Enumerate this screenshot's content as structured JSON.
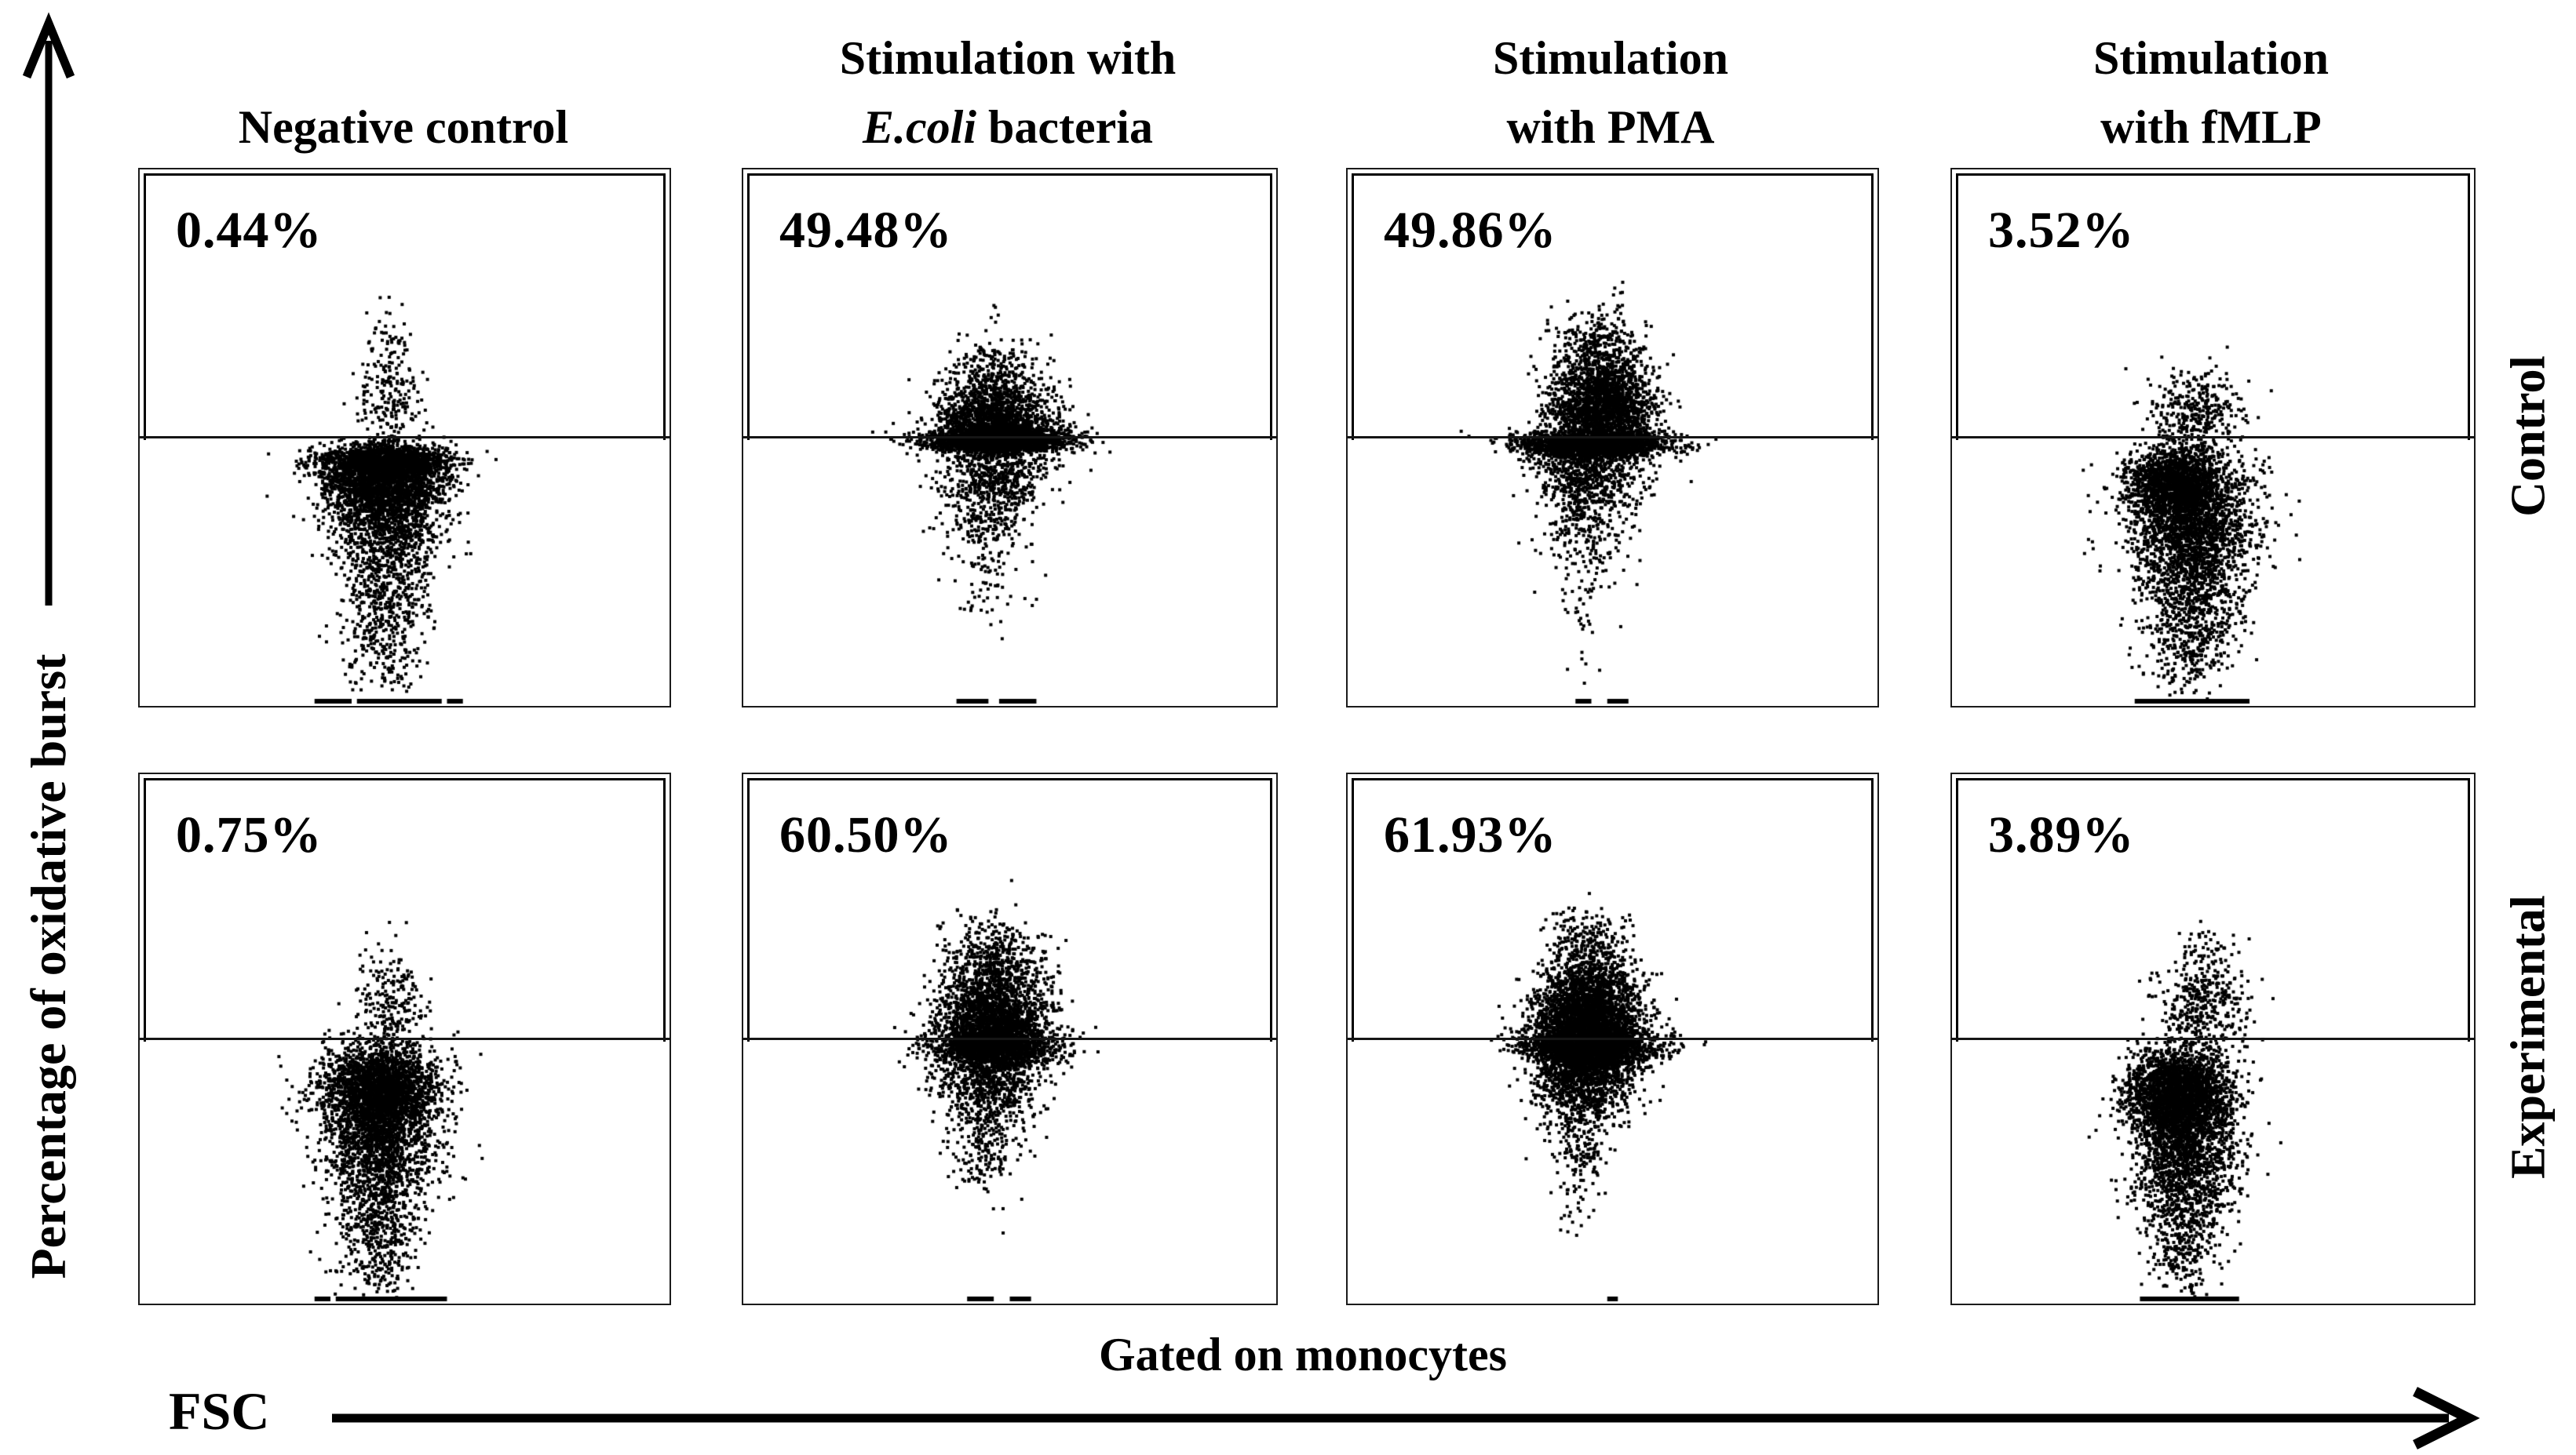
{
  "figure": {
    "y_axis_label": "Percentage of oxidative burst",
    "x_axis_label": "FSC",
    "x_axis_caption": "Gated on monocytes",
    "row_labels": [
      "Control",
      "Experimental"
    ],
    "column_headers": [
      {
        "line1": "",
        "line2_italic": "",
        "line2_rest": "Negative control"
      },
      {
        "line1": "Stimulation with",
        "line2_italic": "E.coli",
        "line2_rest": " bacteria"
      },
      {
        "line1": "Stimulation",
        "line2_italic": "",
        "line2_rest": "with PMA"
      },
      {
        "line1": "Stimulation",
        "line2_italic": "",
        "line2_rest": "with fMLP"
      }
    ]
  },
  "chart_data": [
    {
      "type": "scatter",
      "row": "Control",
      "condition": "Negative control",
      "percent": "0.44%",
      "gate": "upper-half rectangle, events above gate line counted",
      "clusters": [
        {
          "cx": 0.465,
          "cy": 0.545,
          "sx": 0.06,
          "sy": 0.016,
          "n": 1600
        },
        {
          "cx": 0.46,
          "cy": 0.585,
          "sx": 0.055,
          "sy": 0.03,
          "n": 1500
        },
        {
          "cx": 0.465,
          "cy": 0.65,
          "sx": 0.05,
          "sy": 0.05,
          "n": 900
        },
        {
          "cx": 0.465,
          "cy": 0.76,
          "sx": 0.042,
          "sy": 0.07,
          "n": 500
        },
        {
          "cx": 0.46,
          "cy": 0.89,
          "sx": 0.032,
          "sy": 0.05,
          "n": 180
        },
        {
          "cx": 0.47,
          "cy": 0.43,
          "sx": 0.032,
          "sy": 0.045,
          "n": 170
        },
        {
          "cx": 0.475,
          "cy": 0.33,
          "sx": 0.025,
          "sy": 0.038,
          "n": 60
        }
      ],
      "baseline_dashes": [
        [
          0.33,
          0.4
        ],
        [
          0.41,
          0.57
        ],
        [
          0.58,
          0.61
        ]
      ]
    },
    {
      "type": "scatter",
      "row": "Control",
      "condition": "Stimulation with E.coli bacteria",
      "percent": "49.48%",
      "gate": "upper-half rectangle, events above gate line counted",
      "clusters": [
        {
          "cx": 0.48,
          "cy": 0.505,
          "sx": 0.062,
          "sy": 0.011,
          "n": 2200
        },
        {
          "cx": 0.478,
          "cy": 0.478,
          "sx": 0.055,
          "sy": 0.022,
          "n": 900
        },
        {
          "cx": 0.475,
          "cy": 0.44,
          "sx": 0.05,
          "sy": 0.035,
          "n": 650
        },
        {
          "cx": 0.47,
          "cy": 0.38,
          "sx": 0.045,
          "sy": 0.032,
          "n": 220
        },
        {
          "cx": 0.47,
          "cy": 0.56,
          "sx": 0.052,
          "sy": 0.035,
          "n": 520
        },
        {
          "cx": 0.462,
          "cy": 0.64,
          "sx": 0.045,
          "sy": 0.045,
          "n": 260
        },
        {
          "cx": 0.455,
          "cy": 0.76,
          "sx": 0.03,
          "sy": 0.06,
          "n": 70
        },
        {
          "cx": 0.47,
          "cy": 0.25,
          "sx": 0.01,
          "sy": 0.015,
          "n": 3
        }
      ],
      "baseline_dashes": [
        [
          0.4,
          0.46
        ],
        [
          0.48,
          0.55
        ]
      ]
    },
    {
      "type": "scatter",
      "row": "Control",
      "condition": "Stimulation with PMA",
      "percent": "49.86%",
      "gate": "upper-half rectangle, events above gate line counted",
      "clusters": [
        {
          "cx": 0.462,
          "cy": 0.512,
          "sx": 0.066,
          "sy": 0.012,
          "n": 2400
        },
        {
          "cx": 0.48,
          "cy": 0.455,
          "sx": 0.05,
          "sy": 0.03,
          "n": 1100
        },
        {
          "cx": 0.482,
          "cy": 0.405,
          "sx": 0.048,
          "sy": 0.035,
          "n": 800
        },
        {
          "cx": 0.475,
          "cy": 0.33,
          "sx": 0.042,
          "sy": 0.038,
          "n": 330
        },
        {
          "cx": 0.455,
          "cy": 0.565,
          "sx": 0.05,
          "sy": 0.032,
          "n": 600
        },
        {
          "cx": 0.448,
          "cy": 0.65,
          "sx": 0.042,
          "sy": 0.048,
          "n": 280
        },
        {
          "cx": 0.45,
          "cy": 0.8,
          "sx": 0.022,
          "sy": 0.07,
          "n": 60
        }
      ],
      "baseline_dashes": [
        [
          0.43,
          0.46
        ],
        [
          0.49,
          0.53
        ]
      ]
    },
    {
      "type": "scatter",
      "row": "Control",
      "condition": "Stimulation with fMLP",
      "percent": "3.52%",
      "gate": "upper-half rectangle, events above gate line counted",
      "clusters": [
        {
          "cx": 0.43,
          "cy": 0.585,
          "sx": 0.048,
          "sy": 0.035,
          "n": 1500
        },
        {
          "cx": 0.46,
          "cy": 0.65,
          "sx": 0.058,
          "sy": 0.055,
          "n": 1700
        },
        {
          "cx": 0.465,
          "cy": 0.76,
          "sx": 0.05,
          "sy": 0.065,
          "n": 800
        },
        {
          "cx": 0.455,
          "cy": 0.89,
          "sx": 0.04,
          "sy": 0.045,
          "n": 280
        },
        {
          "cx": 0.47,
          "cy": 0.45,
          "sx": 0.047,
          "sy": 0.038,
          "n": 330
        }
      ],
      "baseline_dashes": [
        [
          0.35,
          0.57
        ]
      ]
    },
    {
      "type": "scatter",
      "row": "Experimental",
      "condition": "Negative control",
      "percent": "0.75%",
      "gate": "upper-half rectangle, events above gate line counted",
      "clusters": [
        {
          "cx": 0.455,
          "cy": 0.595,
          "sx": 0.055,
          "sy": 0.042,
          "n": 2300
        },
        {
          "cx": 0.455,
          "cy": 0.69,
          "sx": 0.052,
          "sy": 0.06,
          "n": 1300
        },
        {
          "cx": 0.45,
          "cy": 0.82,
          "sx": 0.042,
          "sy": 0.06,
          "n": 500
        },
        {
          "cx": 0.445,
          "cy": 0.93,
          "sx": 0.03,
          "sy": 0.035,
          "n": 120
        },
        {
          "cx": 0.47,
          "cy": 0.43,
          "sx": 0.033,
          "sy": 0.05,
          "n": 220
        },
        {
          "cx": 0.48,
          "cy": 0.3,
          "sx": 0.008,
          "sy": 0.01,
          "n": 2
        }
      ],
      "baseline_dashes": [
        [
          0.33,
          0.36
        ],
        [
          0.37,
          0.58
        ]
      ]
    },
    {
      "type": "scatter",
      "row": "Experimental",
      "condition": "Stimulation with E.coli bacteria",
      "percent": "60.50%",
      "gate": "upper-half rectangle, events above gate line counted",
      "clusters": [
        {
          "cx": 0.47,
          "cy": 0.515,
          "sx": 0.058,
          "sy": 0.018,
          "n": 1500
        },
        {
          "cx": 0.472,
          "cy": 0.47,
          "sx": 0.05,
          "sy": 0.032,
          "n": 1100
        },
        {
          "cx": 0.47,
          "cy": 0.42,
          "sx": 0.052,
          "sy": 0.045,
          "n": 800
        },
        {
          "cx": 0.478,
          "cy": 0.34,
          "sx": 0.045,
          "sy": 0.042,
          "n": 300
        },
        {
          "cx": 0.463,
          "cy": 0.575,
          "sx": 0.05,
          "sy": 0.038,
          "n": 650
        },
        {
          "cx": 0.455,
          "cy": 0.66,
          "sx": 0.04,
          "sy": 0.048,
          "n": 230
        },
        {
          "cx": 0.45,
          "cy": 0.75,
          "sx": 0.03,
          "sy": 0.04,
          "n": 60
        }
      ],
      "baseline_dashes": [
        [
          0.42,
          0.47
        ],
        [
          0.5,
          0.54
        ]
      ]
    },
    {
      "type": "scatter",
      "row": "Experimental",
      "condition": "Stimulation with PMA",
      "percent": "61.93%",
      "gate": "upper-half rectangle, events above gate line counted",
      "clusters": [
        {
          "cx": 0.452,
          "cy": 0.495,
          "sx": 0.05,
          "sy": 0.045,
          "n": 3200
        },
        {
          "cx": 0.46,
          "cy": 0.517,
          "sx": 0.062,
          "sy": 0.014,
          "n": 1300
        },
        {
          "cx": 0.458,
          "cy": 0.415,
          "sx": 0.048,
          "sy": 0.042,
          "n": 900
        },
        {
          "cx": 0.45,
          "cy": 0.32,
          "sx": 0.04,
          "sy": 0.035,
          "n": 220
        },
        {
          "cx": 0.442,
          "cy": 0.59,
          "sx": 0.045,
          "sy": 0.04,
          "n": 650
        },
        {
          "cx": 0.435,
          "cy": 0.7,
          "sx": 0.03,
          "sy": 0.05,
          "n": 160
        },
        {
          "cx": 0.43,
          "cy": 0.81,
          "sx": 0.018,
          "sy": 0.035,
          "n": 25
        }
      ],
      "baseline_dashes": [
        [
          0.49,
          0.51
        ]
      ]
    },
    {
      "type": "scatter",
      "row": "Experimental",
      "condition": "Stimulation with fMLP",
      "percent": "3.89%",
      "gate": "upper-half rectangle, events above gate line counted",
      "clusters": [
        {
          "cx": 0.435,
          "cy": 0.6,
          "sx": 0.048,
          "sy": 0.04,
          "n": 2200
        },
        {
          "cx": 0.45,
          "cy": 0.69,
          "sx": 0.052,
          "sy": 0.06,
          "n": 1400
        },
        {
          "cx": 0.448,
          "cy": 0.81,
          "sx": 0.042,
          "sy": 0.055,
          "n": 500
        },
        {
          "cx": 0.445,
          "cy": 0.92,
          "sx": 0.03,
          "sy": 0.03,
          "n": 120
        },
        {
          "cx": 0.48,
          "cy": 0.44,
          "sx": 0.043,
          "sy": 0.048,
          "n": 380
        },
        {
          "cx": 0.49,
          "cy": 0.33,
          "sx": 0.025,
          "sy": 0.025,
          "n": 40
        }
      ],
      "baseline_dashes": [
        [
          0.36,
          0.55
        ]
      ]
    }
  ],
  "style": {
    "ink_color": "#000000",
    "panel_border_color": "#1b1b1b",
    "background": "#ffffff"
  }
}
